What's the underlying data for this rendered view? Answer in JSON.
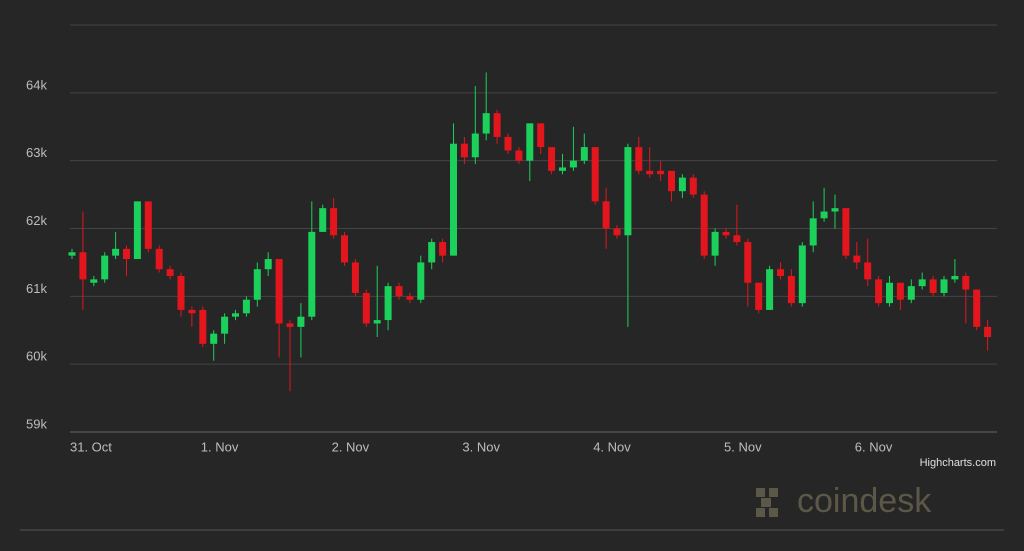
{
  "chart_data": {
    "type": "candlestick",
    "categories": [
      "31. Oct",
      null,
      null,
      null,
      null,
      null,
      null,
      null,
      null,
      null,
      null,
      null,
      "1. Nov",
      null,
      null,
      null,
      null,
      null,
      null,
      null,
      null,
      null,
      null,
      null,
      "2. Nov",
      null,
      null,
      null,
      null,
      null,
      null,
      null,
      null,
      null,
      null,
      null,
      "3. Nov",
      null,
      null,
      null,
      null,
      null,
      null,
      null,
      null,
      null,
      null,
      null,
      "4. Nov",
      null,
      null,
      null,
      null,
      null,
      null,
      null,
      null,
      null,
      null,
      null,
      "5. Nov",
      null,
      null,
      null,
      null,
      null,
      null,
      null,
      null,
      null,
      null,
      null,
      "6. Nov",
      null,
      null,
      null,
      null,
      null,
      null,
      null,
      null,
      null,
      null,
      null,
      null
    ],
    "open": [
      61600,
      61650,
      61200,
      61250,
      61600,
      61700,
      61550,
      62400,
      61700,
      61400,
      61300,
      60800,
      60800,
      60300,
      60450,
      60700,
      60750,
      60950,
      61400,
      61550,
      60600,
      60550,
      60700,
      61950,
      62300,
      61900,
      61500,
      61050,
      60600,
      60650,
      61150,
      61000,
      60950,
      61500,
      61800,
      61600,
      63250,
      63050,
      63400,
      63700,
      63350,
      63150,
      63000,
      63550,
      63200,
      62850,
      62900,
      63000,
      63200,
      62400,
      62000,
      61900,
      63200,
      62850,
      62850,
      62850,
      62550,
      62750,
      62500,
      61600,
      61950,
      61900,
      61800,
      61200,
      60800,
      61400,
      61300,
      60900,
      61750,
      62150,
      62250,
      62300,
      61600,
      61500,
      61250,
      60900,
      61200,
      60950,
      61150,
      61250,
      61050,
      61250,
      61300,
      61100,
      60550
    ],
    "high": [
      61700,
      62250,
      61300,
      61650,
      61950,
      61750,
      62400,
      62400,
      61750,
      61450,
      61350,
      60850,
      60850,
      60500,
      60750,
      60800,
      61000,
      61500,
      61650,
      61550,
      60650,
      60900,
      62400,
      62350,
      62450,
      61950,
      61550,
      61100,
      61450,
      61200,
      61200,
      61050,
      61600,
      61850,
      61850,
      63550,
      63350,
      64100,
      64300,
      63750,
      63400,
      63200,
      63550,
      63550,
      63200,
      63100,
      63500,
      63400,
      63200,
      62600,
      62050,
      63250,
      63350,
      63200,
      63000,
      62850,
      62800,
      62800,
      62550,
      62000,
      62000,
      62350,
      61850,
      61200,
      61450,
      61500,
      61400,
      61800,
      62400,
      62600,
      62500,
      62300,
      61800,
      61850,
      61300,
      61300,
      61200,
      61250,
      61350,
      61300,
      61300,
      61550,
      61350,
      61100,
      60650
    ],
    "low": [
      61550,
      60800,
      61150,
      61200,
      61550,
      61300,
      61550,
      61650,
      61350,
      61250,
      60700,
      60550,
      60250,
      60050,
      60300,
      60650,
      60700,
      60850,
      61300,
      60100,
      59600,
      60100,
      60650,
      61950,
      61850,
      61450,
      61000,
      60550,
      60400,
      60500,
      60950,
      60900,
      60900,
      61400,
      61500,
      61600,
      62950,
      62950,
      63300,
      63250,
      63100,
      62950,
      62700,
      63100,
      62800,
      62800,
      62850,
      62950,
      62350,
      61700,
      61850,
      60550,
      62800,
      62750,
      62700,
      62400,
      62450,
      62450,
      61550,
      61450,
      61850,
      61750,
      60850,
      60750,
      60800,
      61250,
      60850,
      60850,
      61650,
      62100,
      62000,
      61550,
      61400,
      61150,
      60850,
      60850,
      60800,
      60900,
      61100,
      61000,
      61000,
      61200,
      60600,
      60500,
      60200
    ],
    "close": [
      61650,
      61250,
      61250,
      61600,
      61700,
      61550,
      62400,
      61700,
      61400,
      61300,
      60800,
      60750,
      60300,
      60450,
      60700,
      60750,
      60950,
      61400,
      61550,
      60600,
      60550,
      60700,
      61950,
      62300,
      61900,
      61500,
      61050,
      60600,
      60650,
      61150,
      61000,
      60950,
      61500,
      61800,
      61600,
      63250,
      63050,
      63400,
      63700,
      63350,
      63150,
      63000,
      63550,
      63200,
      62850,
      62900,
      63000,
      63200,
      62400,
      62000,
      61900,
      63200,
      62850,
      62800,
      62800,
      62550,
      62750,
      62500,
      61600,
      61950,
      61900,
      61800,
      61200,
      60800,
      61400,
      61300,
      60900,
      61750,
      62150,
      62250,
      62300,
      61600,
      61500,
      61250,
      60900,
      61200,
      60950,
      61150,
      61250,
      61050,
      61250,
      61300,
      61100,
      60550,
      60400
    ],
    "up_color": "#1bd15c",
    "down_color": "#e3161d",
    "ylim": [
      59000,
      65000
    ],
    "yticks": [
      {
        "value": 59000,
        "label": "59k"
      },
      {
        "value": 60000,
        "label": "60k"
      },
      {
        "value": 61000,
        "label": "61k"
      },
      {
        "value": 62000,
        "label": "62k"
      },
      {
        "value": 63000,
        "label": "63k"
      },
      {
        "value": 64000,
        "label": "64k"
      }
    ],
    "grid": true,
    "credits": "Highcharts.com",
    "watermark": "coindesk"
  }
}
